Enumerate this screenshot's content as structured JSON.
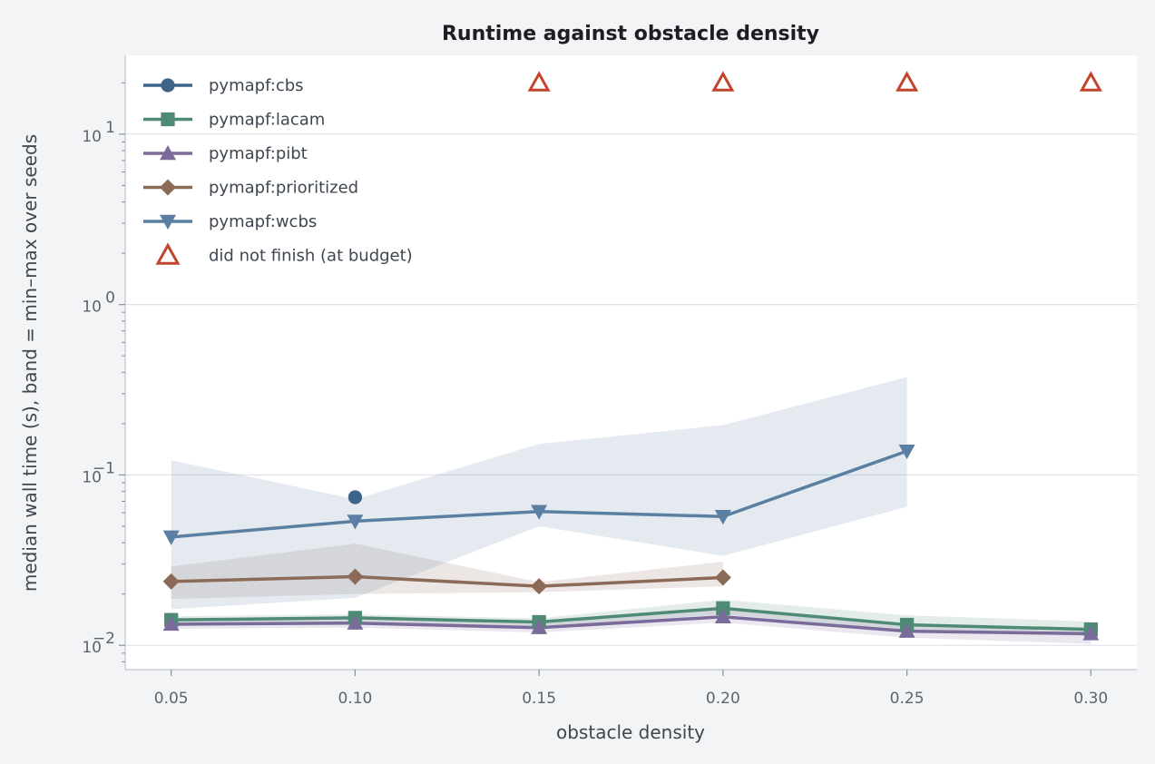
{
  "chart_data": {
    "type": "line",
    "title": "Runtime against obstacle density",
    "xlabel": "obstacle density",
    "ylabel": "median wall time (s), band = min–max over seeds",
    "yscale": "log",
    "xlim": [
      0.0375,
      0.3125
    ],
    "ylim": [
      0.0072,
      29
    ],
    "x_ticks": [
      "0.05",
      "0.10",
      "0.15",
      "0.20",
      "0.25",
      "0.30"
    ],
    "y_ticks": [
      {
        "value": 0.01,
        "base": "10",
        "exp": "−2"
      },
      {
        "value": 0.1,
        "base": "10",
        "exp": "−1"
      },
      {
        "value": 1,
        "base": "10",
        "exp": "0"
      },
      {
        "value": 10,
        "base": "10",
        "exp": "1"
      }
    ],
    "grid": "horizontal",
    "legend_position": "top-left",
    "series": [
      {
        "name": "pymapf:cbs",
        "color": "#3e6589",
        "marker": "circle",
        "points": [
          {
            "x": 0.1,
            "y": 0.074
          }
        ]
      },
      {
        "name": "pymapf:lacam",
        "color": "#4f8a76",
        "marker": "square",
        "points": [
          {
            "x": 0.05,
            "y": 0.0141
          },
          {
            "x": 0.1,
            "y": 0.0145
          },
          {
            "x": 0.15,
            "y": 0.0137
          },
          {
            "x": 0.2,
            "y": 0.0165
          },
          {
            "x": 0.25,
            "y": 0.0132
          },
          {
            "x": 0.3,
            "y": 0.0124
          }
        ],
        "band": [
          {
            "x": 0.05,
            "lo": 0.0132,
            "hi": 0.0148
          },
          {
            "x": 0.1,
            "lo": 0.0136,
            "hi": 0.0152
          },
          {
            "x": 0.15,
            "lo": 0.0128,
            "hi": 0.0144
          },
          {
            "x": 0.2,
            "lo": 0.0152,
            "hi": 0.0185
          },
          {
            "x": 0.25,
            "lo": 0.0122,
            "hi": 0.015
          },
          {
            "x": 0.3,
            "lo": 0.0113,
            "hi": 0.0138
          }
        ]
      },
      {
        "name": "pymapf:pibt",
        "color": "#7a6b9a",
        "marker": "triangle-up",
        "points": [
          {
            "x": 0.05,
            "y": 0.0133
          },
          {
            "x": 0.1,
            "y": 0.0135
          },
          {
            "x": 0.15,
            "y": 0.0127
          },
          {
            "x": 0.2,
            "y": 0.0147
          },
          {
            "x": 0.25,
            "y": 0.0121
          },
          {
            "x": 0.3,
            "y": 0.0117
          }
        ],
        "band": [
          {
            "x": 0.05,
            "lo": 0.0125,
            "hi": 0.0142
          },
          {
            "x": 0.1,
            "lo": 0.0127,
            "hi": 0.0144
          },
          {
            "x": 0.15,
            "lo": 0.0119,
            "hi": 0.0136
          },
          {
            "x": 0.2,
            "lo": 0.0136,
            "hi": 0.0162
          },
          {
            "x": 0.25,
            "lo": 0.0111,
            "hi": 0.0134
          },
          {
            "x": 0.3,
            "lo": 0.0102,
            "hi": 0.0126
          }
        ]
      },
      {
        "name": "pymapf:prioritized",
        "color": "#8b6a58",
        "marker": "diamond",
        "points": [
          {
            "x": 0.05,
            "y": 0.0237
          },
          {
            "x": 0.1,
            "y": 0.0253
          },
          {
            "x": 0.15,
            "y": 0.0222
          },
          {
            "x": 0.2,
            "y": 0.025
          }
        ],
        "band": [
          {
            "x": 0.05,
            "lo": 0.0187,
            "hi": 0.029
          },
          {
            "x": 0.1,
            "lo": 0.02,
            "hi": 0.0395
          },
          {
            "x": 0.15,
            "lo": 0.0205,
            "hi": 0.0235
          },
          {
            "x": 0.2,
            "lo": 0.0222,
            "hi": 0.031
          }
        ]
      },
      {
        "name": "pymapf:wcbs",
        "color": "#5a7fa2",
        "marker": "triangle-down",
        "points": [
          {
            "x": 0.05,
            "y": 0.0432
          },
          {
            "x": 0.1,
            "y": 0.0535
          },
          {
            "x": 0.15,
            "y": 0.061
          },
          {
            "x": 0.2,
            "y": 0.057
          },
          {
            "x": 0.25,
            "y": 0.138
          }
        ],
        "band": [
          {
            "x": 0.05,
            "lo": 0.0163,
            "hi": 0.122
          },
          {
            "x": 0.1,
            "lo": 0.019,
            "hi": 0.072
          },
          {
            "x": 0.15,
            "lo": 0.05,
            "hi": 0.152
          },
          {
            "x": 0.2,
            "lo": 0.0335,
            "hi": 0.196
          },
          {
            "x": 0.25,
            "lo": 0.065,
            "hi": 0.375
          }
        ]
      }
    ],
    "dnf": {
      "name": "did not finish (at budget)",
      "color": "#c0452c",
      "marker": "triangle-up-open",
      "points": [
        {
          "x": 0.15,
          "y": 20
        },
        {
          "x": 0.2,
          "y": 20
        },
        {
          "x": 0.25,
          "y": 20
        },
        {
          "x": 0.3,
          "y": 20
        }
      ]
    }
  }
}
